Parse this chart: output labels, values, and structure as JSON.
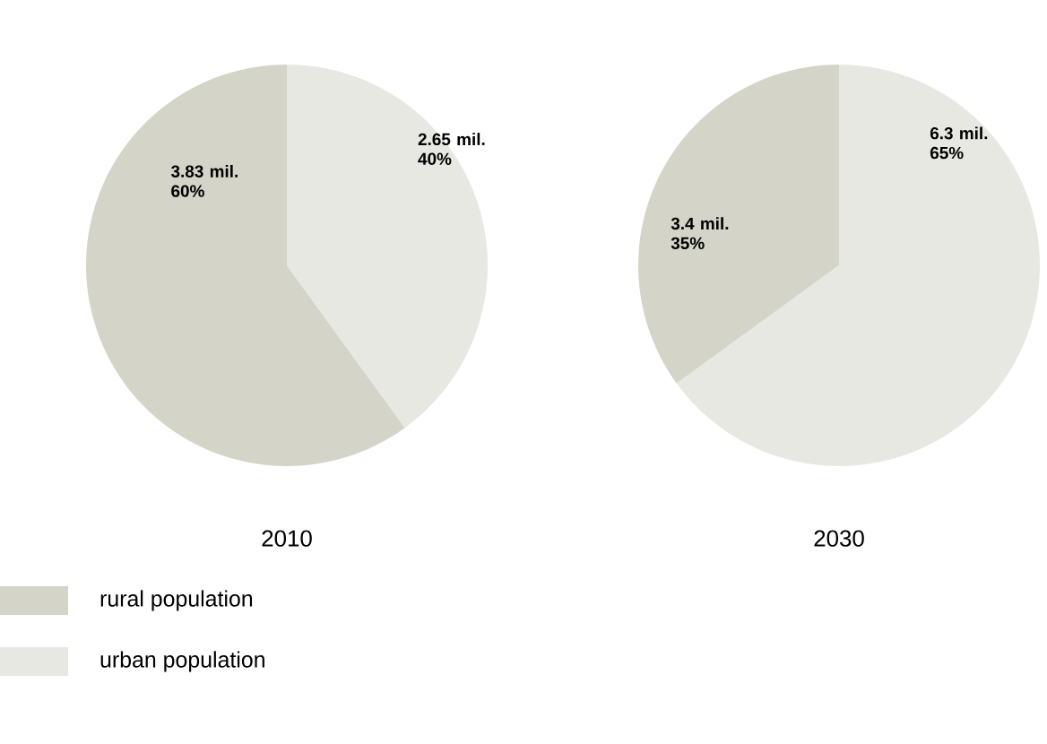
{
  "chart_data": [
    {
      "type": "pie",
      "title": "2010",
      "categories": [
        "rural population",
        "urban population"
      ],
      "values": [
        60,
        40
      ],
      "value_labels": [
        "3.83 mil. 60%",
        "2.65 mil. 40%"
      ],
      "colors": [
        "#d4d4c8",
        "#e8e8e3"
      ],
      "legend": "bottom left"
    },
    {
      "type": "pie",
      "title": "2030",
      "categories": [
        null,
        null
      ],
      "values": [
        35,
        65
      ],
      "value_labels": [
        "3.4 mil. 35%",
        "6.3 mil. 65%"
      ],
      "colors": [
        "#d4d4c8",
        "#e8e8e3"
      ]
    }
  ]
}
